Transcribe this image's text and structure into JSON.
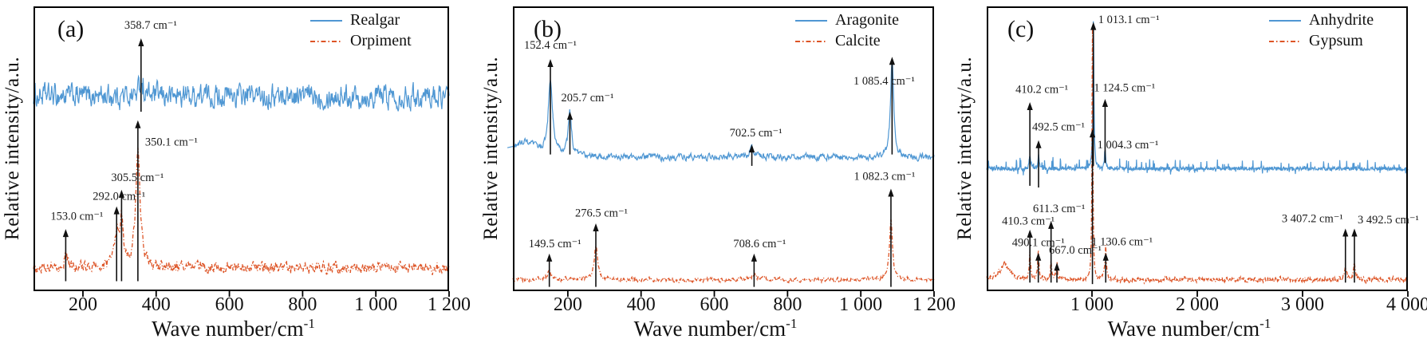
{
  "figure": {
    "background": "#ffffff",
    "axis_color": "#000000",
    "annotation_color": "#1a1a1a"
  },
  "chart_data": [
    {
      "type": "line",
      "panel_label": "(a)",
      "xlabel_base": "Wave number/cm",
      "xlabel_sup": "-1",
      "ylabel": "Relative intensity/a.u.",
      "xlim": [
        65,
        1200
      ],
      "grid": false,
      "legend_position": "top-right",
      "xticks": [
        {
          "value": 200,
          "label": "200"
        },
        {
          "value": 400,
          "label": "400"
        },
        {
          "value": 600,
          "label": "600"
        },
        {
          "value": 800,
          "label": "800"
        },
        {
          "value": 1000,
          "label": "1 000"
        },
        {
          "value": 1200,
          "label": "1 200"
        }
      ],
      "series": [
        {
          "name": "Realgar",
          "color": "#4f97d3",
          "line_style": "solid",
          "baseline": 0.686,
          "noise_amp": 0.042,
          "noise_type": "smooth",
          "peaks": [
            {
              "x": 358.7,
              "height": 0.07,
              "width": 5
            }
          ]
        },
        {
          "name": "Orpiment",
          "color": "#dd5426",
          "line_style": "dashdot",
          "baseline": 0.082,
          "noise_amp": 0.02,
          "noise_type": "smooth",
          "peaks": [
            {
              "x": 153.0,
              "height": 0.05,
              "width": 5
            },
            {
              "x": 292.0,
              "height": 0.11,
              "width": 8
            },
            {
              "x": 305.5,
              "height": 0.16,
              "width": 5
            },
            {
              "x": 350.1,
              "height": 0.42,
              "width": 7
            }
          ]
        }
      ],
      "annotations": [
        {
          "x": 153.0,
          "label": "153.0 cm⁻¹",
          "bottom": 0.035,
          "tip": 0.218,
          "label_y": 0.265,
          "anchor": "middle",
          "label_dx": 14
        },
        {
          "x": 292.0,
          "label": "292.0 cm⁻¹",
          "bottom": 0.035,
          "tip": 0.298,
          "label_y": 0.335,
          "anchor": "middle",
          "label_dx": 3
        },
        {
          "x": 305.5,
          "label": "305.5 cm⁻¹",
          "bottom": 0.035,
          "tip": 0.356,
          "label_y": 0.4,
          "anchor": "middle",
          "label_dx": 20
        },
        {
          "x": 350.1,
          "label": "350.1 cm⁻¹",
          "bottom": 0.035,
          "tip": 0.6,
          "label_y": 0.525,
          "anchor": "start",
          "label_dx": 9
        },
        {
          "x": 358.7,
          "label": "358.7 cm⁻¹",
          "bottom": 0.63,
          "tip": 0.888,
          "label_y": 0.935,
          "anchor": "middle",
          "label_dx": 12
        }
      ]
    },
    {
      "type": "line",
      "panel_label": "(b)",
      "xlabel_base": "Wave number/cm",
      "xlabel_sup": "-1",
      "ylabel": "Relative intensity/a.u.",
      "xlim": [
        50,
        1200
      ],
      "grid": false,
      "legend_position": "top-right",
      "xticks": [
        {
          "value": 200,
          "label": "200"
        },
        {
          "value": 400,
          "label": "400"
        },
        {
          "value": 600,
          "label": "600"
        },
        {
          "value": 800,
          "label": "800"
        },
        {
          "value": 1000,
          "label": "1 000"
        },
        {
          "value": 1200,
          "label": "1 200"
        }
      ],
      "series": [
        {
          "name": "Aragonite",
          "color": "#4f97d3",
          "line_style": "solid",
          "baseline": 0.47,
          "noise_amp": 0.012,
          "noise_type": "smooth",
          "peaks": [
            {
              "x": 80,
              "height": 0.05,
              "width": 45
            },
            {
              "x": 152.4,
              "height": 0.25,
              "width": 7
            },
            {
              "x": 205.7,
              "height": 0.16,
              "width": 5
            },
            {
              "x": 702.5,
              "height": 0.04,
              "width": 7
            },
            {
              "x": 1085.4,
              "height": 0.35,
              "width": 5
            }
          ]
        },
        {
          "name": "Calcite",
          "color": "#dd5426",
          "line_style": "dashdot",
          "baseline": 0.04,
          "noise_amp": 0.008,
          "noise_type": "smooth",
          "peaks": [
            {
              "x": 149.5,
              "height": 0.035,
              "width": 5
            },
            {
              "x": 276.5,
              "height": 0.115,
              "width": 6
            },
            {
              "x": 708.6,
              "height": 0.02,
              "width": 7
            },
            {
              "x": 1082.3,
              "height": 0.21,
              "width": 5
            }
          ]
        }
      ],
      "annotations": [
        {
          "x": 152.4,
          "label": "152.4 cm⁻¹",
          "bottom": 0.48,
          "tip": 0.815,
          "label_y": 0.866,
          "anchor": "middle",
          "label_dx": 0
        },
        {
          "x": 205.7,
          "label": "205.7 cm⁻¹",
          "bottom": 0.48,
          "tip": 0.63,
          "label_y": 0.68,
          "anchor": "middle",
          "label_dx": 22
        },
        {
          "x": 702.5,
          "label": "702.5 cm⁻¹",
          "bottom": 0.44,
          "tip": 0.515,
          "label_y": 0.558,
          "anchor": "middle",
          "label_dx": 5
        },
        {
          "x": 1085.4,
          "label": "1 085.4 cm⁻¹",
          "bottom": 0.48,
          "tip": 0.823,
          "label_y": 0.74,
          "anchor": "middle",
          "label_dx": -10
        },
        {
          "x": 149.5,
          "label": "149.5 cm⁻¹",
          "bottom": 0.015,
          "tip": 0.132,
          "label_y": 0.168,
          "anchor": "middle",
          "label_dx": 7
        },
        {
          "x": 276.5,
          "label": "276.5 cm⁻¹",
          "bottom": 0.015,
          "tip": 0.238,
          "label_y": 0.276,
          "anchor": "middle",
          "label_dx": 7
        },
        {
          "x": 708.6,
          "label": "708.6 cm⁻¹",
          "bottom": 0.015,
          "tip": 0.132,
          "label_y": 0.168,
          "anchor": "middle",
          "label_dx": 7
        },
        {
          "x": 1082.3,
          "label": "1 082.3 cm⁻¹",
          "bottom": 0.015,
          "tip": 0.36,
          "label_y": 0.405,
          "anchor": "middle",
          "label_dx": -8
        }
      ]
    },
    {
      "type": "line",
      "panel_label": "(c)",
      "xlabel_base": "Wave number/cm",
      "xlabel_sup": "-1",
      "ylabel": "Relative intensity/a.u.",
      "xlim": [
        0,
        4000
      ],
      "grid": false,
      "legend_position": "top-right",
      "xticks": [
        {
          "value": 1000,
          "label": "1 000"
        },
        {
          "value": 2000,
          "label": "2 000"
        },
        {
          "value": 3000,
          "label": "3 000"
        },
        {
          "value": 4000,
          "label": "4 000"
        }
      ],
      "series": [
        {
          "name": "Anhydrite",
          "color": "#4f97d3",
          "line_style": "solid",
          "baseline": 0.43,
          "noise_amp": 0.013,
          "noise_type": "spiky",
          "peaks": [
            {
              "x": 410.2,
              "height": 0.045,
              "width": 7
            },
            {
              "x": 492.5,
              "height": 0.05,
              "width": 7
            },
            {
              "x": 1013.1,
              "height": 0.52,
              "width": 6
            },
            {
              "x": 1124.5,
              "height": 0.06,
              "width": 7
            }
          ]
        },
        {
          "name": "Gypsum",
          "color": "#dd5426",
          "line_style": "dashdot",
          "baseline": 0.04,
          "noise_amp": 0.009,
          "noise_type": "smooth",
          "peaks": [
            {
              "x": 170,
              "height": 0.055,
              "width": 55
            },
            {
              "x": 410.3,
              "height": 0.095,
              "width": 7
            },
            {
              "x": 490.1,
              "height": 0.095,
              "width": 7
            },
            {
              "x": 611.3,
              "height": 0.06,
              "width": 7
            },
            {
              "x": 667.0,
              "height": 0.05,
              "width": 7
            },
            {
              "x": 1004.3,
              "height": 0.89,
              "width": 5
            },
            {
              "x": 1130.6,
              "height": 0.115,
              "width": 8
            },
            {
              "x": 3407.2,
              "height": 0.045,
              "width": 11
            },
            {
              "x": 3492.5,
              "height": 0.055,
              "width": 11
            }
          ]
        }
      ],
      "annotations": [
        {
          "x": 410.2,
          "label": "410.2 cm⁻¹",
          "bottom": 0.37,
          "tip": 0.664,
          "label_y": 0.71,
          "anchor": "middle",
          "label_dx": 15
        },
        {
          "x": 492.5,
          "label": "492.5 cm⁻¹",
          "bottom": 0.364,
          "tip": 0.53,
          "label_y": 0.578,
          "anchor": "start",
          "label_dx": -8
        },
        {
          "x": 1013.1,
          "label": "1 013.1 cm⁻¹",
          "bottom": 0.44,
          "tip": 0.945,
          "label_y": 0.955,
          "anchor": "start",
          "label_dx": 6
        },
        {
          "x": 1124.5,
          "label": "1 124.5 cm⁻¹",
          "bottom": 0.45,
          "tip": 0.675,
          "label_y": 0.715,
          "anchor": "start",
          "label_dx": -14
        },
        {
          "x": 410.3,
          "label": "410.3 cm⁻¹",
          "bottom": 0.03,
          "tip": 0.216,
          "label_y": 0.248,
          "anchor": "middle",
          "label_dx": -2
        },
        {
          "x": 490.1,
          "label": "490.1 cm⁻¹",
          "bottom": 0.03,
          "tip": 0.135,
          "label_y": 0.172,
          "anchor": "middle",
          "label_dx": 0
        },
        {
          "x": 611.3,
          "label": "611.3 cm⁻¹",
          "bottom": 0.03,
          "tip": 0.247,
          "label_y": 0.292,
          "anchor": "middle",
          "label_dx": 10
        },
        {
          "x": 667.0,
          "label": "667.0 cm⁻¹",
          "bottom": 0.03,
          "tip": 0.1,
          "label_y": 0.145,
          "anchor": "start",
          "label_dx": -10
        },
        {
          "x": 1004.3,
          "label": "1 004.3 cm⁻¹",
          "bottom": 0.025,
          "tip": 0.568,
          "label_y": 0.515,
          "anchor": "start",
          "label_dx": 6
        },
        {
          "x": 1130.6,
          "label": "1 130.6 cm⁻¹",
          "bottom": 0.03,
          "tip": 0.135,
          "label_y": 0.175,
          "anchor": "start",
          "label_dx": -18
        },
        {
          "x": 3407.2,
          "label": "3 407.2 cm⁻¹",
          "bottom": 0.03,
          "tip": 0.22,
          "label_y": 0.257,
          "anchor": "end",
          "label_dx": -3
        },
        {
          "x": 3492.5,
          "label": "3 492.5 cm⁻¹",
          "bottom": 0.03,
          "tip": 0.22,
          "label_y": 0.252,
          "anchor": "start",
          "label_dx": 4
        }
      ]
    }
  ]
}
